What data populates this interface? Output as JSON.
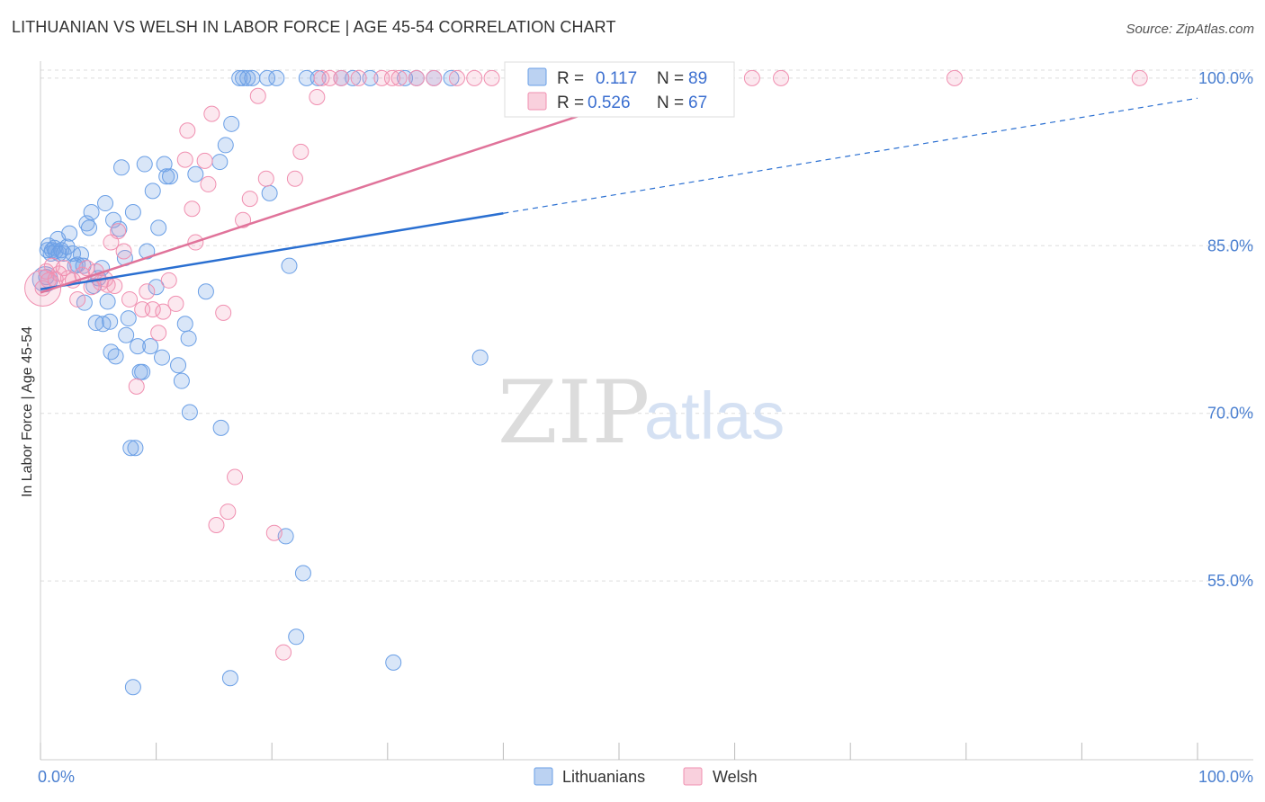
{
  "title": "LITHUANIAN VS WELSH IN LABOR FORCE | AGE 45-54 CORRELATION CHART",
  "source": "Source: ZipAtlas.com",
  "watermark": {
    "zip": "ZIP",
    "atlas": "atlas"
  },
  "colors": {
    "lithuanian": "#6a9fe6",
    "lithuanian_fill": "rgba(120,165,230,0.28)",
    "lithuanian_line": "#2a6fd1",
    "welsh": "#f08fb0",
    "welsh_fill": "rgba(242,150,180,0.22)",
    "welsh_line": "#e0739a",
    "tick_label": "#4a7fd0",
    "grid": "#dddddd"
  },
  "legend": {
    "r_label": "R =",
    "n_label": "N =",
    "lithuanian": {
      "r": "0.117",
      "n": "89"
    },
    "welsh": {
      "r": "0.526",
      "n": "67"
    }
  },
  "bottom_legend": {
    "lithuanian": "Lithuanians",
    "welsh": "Welsh"
  },
  "chart_data": {
    "type": "scatter",
    "title": "LITHUANIAN VS WELSH IN LABOR FORCE | AGE 45-54 CORRELATION CHART",
    "xlabel": "",
    "ylabel": "In Labor Force | Age 45-54",
    "xlim": [
      0,
      100
    ],
    "ylim": [
      39,
      102
    ],
    "x_tick_labels": [
      "0.0%",
      "100.0%"
    ],
    "y_ticks": [
      55,
      70,
      85,
      100
    ],
    "y_tick_labels": [
      "55.0%",
      "70.0%",
      "85.0%",
      "100.0%"
    ],
    "grid": true,
    "legend_position": "top-center",
    "series": [
      {
        "name": "Lithuanians",
        "r": 0.117,
        "n": 89,
        "trend": {
          "x0": 0,
          "y0": 81.1,
          "x1": 40,
          "y1": 87.9,
          "dashed_to_x": 100,
          "dashed_to_y": 98.2
        },
        "points": [
          [
            0.5,
            82.2
          ],
          [
            0.6,
            84.6
          ],
          [
            0.7,
            85.0
          ],
          [
            0.9,
            84.3
          ],
          [
            1.0,
            84.6
          ],
          [
            1.2,
            84.8
          ],
          [
            1.3,
            84.5
          ],
          [
            1.5,
            85.6
          ],
          [
            1.6,
            84.3
          ],
          [
            1.8,
            84.6
          ],
          [
            2.0,
            84.3
          ],
          [
            2.3,
            84.9
          ],
          [
            2.5,
            86.1
          ],
          [
            2.8,
            84.3
          ],
          [
            3.0,
            83.2
          ],
          [
            3.2,
            83.3
          ],
          [
            3.5,
            84.2
          ],
          [
            3.7,
            83.2
          ],
          [
            3.8,
            79.9
          ],
          [
            4.0,
            87.0
          ],
          [
            4.2,
            86.6
          ],
          [
            4.4,
            88.0
          ],
          [
            4.6,
            81.4
          ],
          [
            4.8,
            78.1
          ],
          [
            5.0,
            82.1
          ],
          [
            5.3,
            83.0
          ],
          [
            5.4,
            78.0
          ],
          [
            5.6,
            88.8
          ],
          [
            5.8,
            80.0
          ],
          [
            6.0,
            78.2
          ],
          [
            6.1,
            75.5
          ],
          [
            6.3,
            87.3
          ],
          [
            6.5,
            75.1
          ],
          [
            6.8,
            86.5
          ],
          [
            7.0,
            92.0
          ],
          [
            7.3,
            83.9
          ],
          [
            7.4,
            77.0
          ],
          [
            7.6,
            78.5
          ],
          [
            7.8,
            66.9
          ],
          [
            8.0,
            88.0
          ],
          [
            8.2,
            66.9
          ],
          [
            8.4,
            76.0
          ],
          [
            8.6,
            73.7
          ],
          [
            8.8,
            73.7
          ],
          [
            9.0,
            92.3
          ],
          [
            9.2,
            84.5
          ],
          [
            9.5,
            76.0
          ],
          [
            9.7,
            89.9
          ],
          [
            10.0,
            81.3
          ],
          [
            10.2,
            86.6
          ],
          [
            10.5,
            75.0
          ],
          [
            10.7,
            92.3
          ],
          [
            10.9,
            91.2
          ],
          [
            11.2,
            91.2
          ],
          [
            11.9,
            74.3
          ],
          [
            12.2,
            72.9
          ],
          [
            12.5,
            78.0
          ],
          [
            12.8,
            76.7
          ],
          [
            12.9,
            70.1
          ],
          [
            13.4,
            91.4
          ],
          [
            14.3,
            80.9
          ],
          [
            15.5,
            92.5
          ],
          [
            15.6,
            68.7
          ],
          [
            16.0,
            94.0
          ],
          [
            16.5,
            95.9
          ],
          [
            17.2,
            100.0
          ],
          [
            17.5,
            100.0
          ],
          [
            17.9,
            100.0
          ],
          [
            18.3,
            100.0
          ],
          [
            19.6,
            100.0
          ],
          [
            19.8,
            89.7
          ],
          [
            20.4,
            100.0
          ],
          [
            21.2,
            59.0
          ],
          [
            21.5,
            83.2
          ],
          [
            22.1,
            50.0
          ],
          [
            22.7,
            55.7
          ],
          [
            23.0,
            100.0
          ],
          [
            24.0,
            100.0
          ],
          [
            26.0,
            100.0
          ],
          [
            27.0,
            100.0
          ],
          [
            28.5,
            100.0
          ],
          [
            30.5,
            47.7
          ],
          [
            31.5,
            100.0
          ],
          [
            32.5,
            100.0
          ],
          [
            34.0,
            100.0
          ],
          [
            35.5,
            100.0
          ],
          [
            38.0,
            75.0
          ],
          [
            8.0,
            45.5
          ],
          [
            16.4,
            46.3
          ]
        ]
      },
      {
        "name": "Welsh",
        "r": 0.526,
        "n": 67,
        "trend": {
          "x0": 0,
          "y0": 80.8,
          "x1": 56.5,
          "y1": 100.0
        },
        "points": [
          [
            0.2,
            81.2
          ],
          [
            0.5,
            82.7
          ],
          [
            0.7,
            81.9
          ],
          [
            1.0,
            83.2
          ],
          [
            1.3,
            82.0
          ],
          [
            1.6,
            82.5
          ],
          [
            2.0,
            83.0
          ],
          [
            2.4,
            82.1
          ],
          [
            2.8,
            81.9
          ],
          [
            3.2,
            80.2
          ],
          [
            3.6,
            82.4
          ],
          [
            4.0,
            83.0
          ],
          [
            4.4,
            81.3
          ],
          [
            4.8,
            82.7
          ],
          [
            5.2,
            81.7
          ],
          [
            5.6,
            82.0
          ],
          [
            5.8,
            81.5
          ],
          [
            6.1,
            85.3
          ],
          [
            6.4,
            81.4
          ],
          [
            6.7,
            86.3
          ],
          [
            7.2,
            84.5
          ],
          [
            7.7,
            80.2
          ],
          [
            8.3,
            72.4
          ],
          [
            8.8,
            79.3
          ],
          [
            9.2,
            80.9
          ],
          [
            9.7,
            79.3
          ],
          [
            10.2,
            77.2
          ],
          [
            10.6,
            79.1
          ],
          [
            11.1,
            81.9
          ],
          [
            11.7,
            79.8
          ],
          [
            12.5,
            92.7
          ],
          [
            12.7,
            95.3
          ],
          [
            13.1,
            88.3
          ],
          [
            13.4,
            85.3
          ],
          [
            14.2,
            92.6
          ],
          [
            14.5,
            90.5
          ],
          [
            14.8,
            96.8
          ],
          [
            15.2,
            60.0
          ],
          [
            15.8,
            79.0
          ],
          [
            16.2,
            61.2
          ],
          [
            16.8,
            64.3
          ],
          [
            17.5,
            87.3
          ],
          [
            18.1,
            89.2
          ],
          [
            18.8,
            98.4
          ],
          [
            19.5,
            91.0
          ],
          [
            20.2,
            59.3
          ],
          [
            21.0,
            48.6
          ],
          [
            22.0,
            91.0
          ],
          [
            22.5,
            93.4
          ],
          [
            23.9,
            98.3
          ],
          [
            24.3,
            100.0
          ],
          [
            25.0,
            100.0
          ],
          [
            26.0,
            100.0
          ],
          [
            27.5,
            100.0
          ],
          [
            29.5,
            100.0
          ],
          [
            30.4,
            100.0
          ],
          [
            31.0,
            100.0
          ],
          [
            32.5,
            100.0
          ],
          [
            34.0,
            100.0
          ],
          [
            36.0,
            100.0
          ],
          [
            37.5,
            100.0
          ],
          [
            39.0,
            100.0
          ],
          [
            47.0,
            100.0
          ],
          [
            61.5,
            100.0
          ],
          [
            64.0,
            100.0
          ],
          [
            79.0,
            100.0
          ],
          [
            95.0,
            100.0
          ]
        ]
      }
    ]
  }
}
